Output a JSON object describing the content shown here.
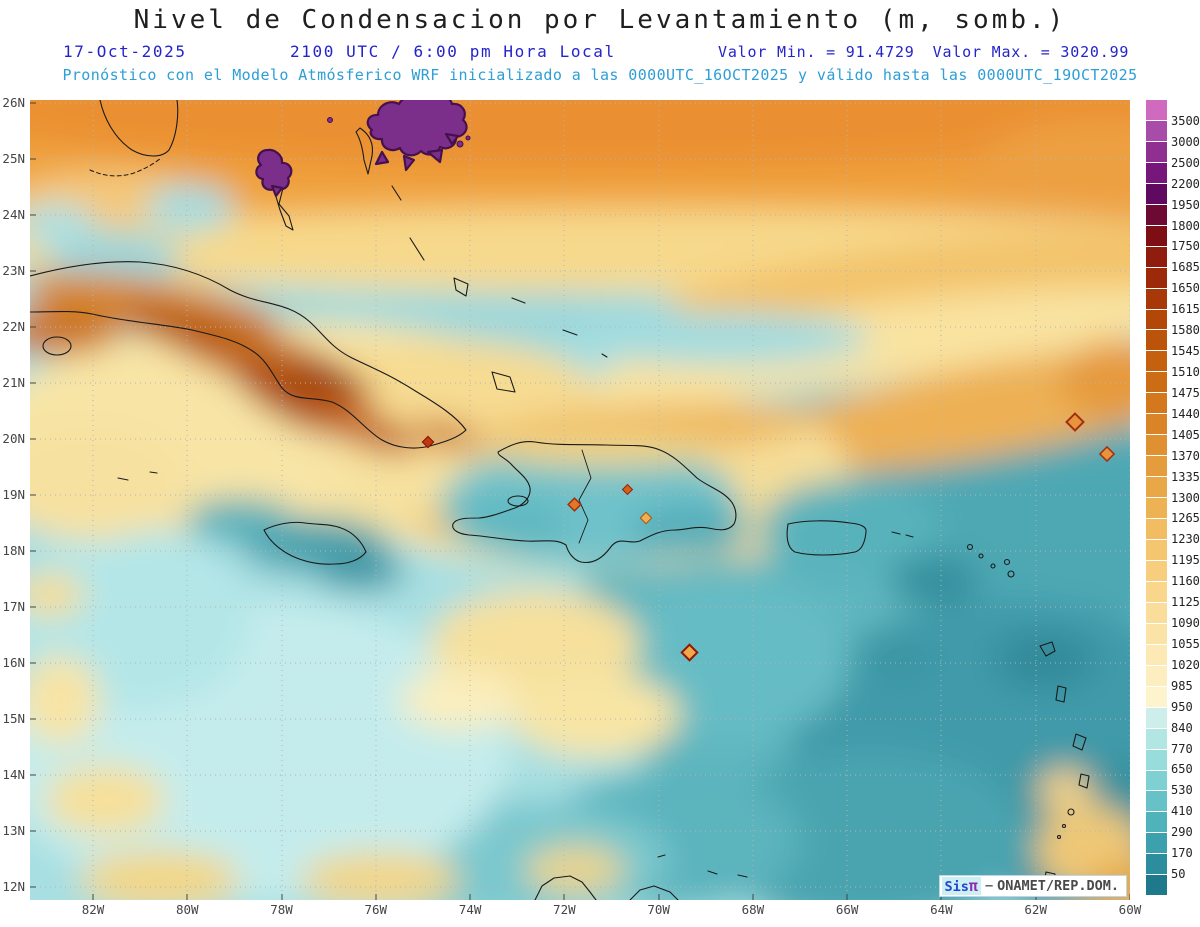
{
  "title": "Nivel de Condensacion por Levantamiento (m, somb.)",
  "header": {
    "date": "17-Oct-2025",
    "valid_time": "2100 UTC / 6:00 pm Hora Local",
    "min_value": "Valor Min. = 91.4729",
    "max_value": "Valor Max. = 3020.99",
    "model_info": "Pronóstico con el Modelo Atmósferico WRF inicializado a las 0000UTC_16OCT2025 y válido hasta las  0000UTC_19OCT2025"
  },
  "map": {
    "lat_labels": [
      "26N",
      "25N",
      "24N",
      "23N",
      "22N",
      "21N",
      "20N",
      "19N",
      "18N",
      "17N",
      "16N",
      "15N",
      "14N",
      "13N",
      "12N"
    ],
    "lon_labels": [
      "82W",
      "80W",
      "78W",
      "76W",
      "74W",
      "72W",
      "70W",
      "68W",
      "66W",
      "64W",
      "62W",
      "60W"
    ],
    "watermark": {
      "brand_prefix": "Sis",
      "brand_pi": "π",
      "separator": "−",
      "org": "ONAMET/REP.DOM."
    }
  },
  "colorbar": {
    "tick_labels": [
      "3500",
      "3000",
      "2500",
      "2200",
      "1950",
      "1800",
      "1750",
      "1685",
      "1650",
      "1615",
      "1580",
      "1545",
      "1510",
      "1475",
      "1440",
      "1405",
      "1370",
      "1335",
      "1300",
      "1265",
      "1230",
      "1195",
      "1160",
      "1125",
      "1090",
      "1055",
      "1020",
      "985",
      "950",
      "840",
      "770",
      "650",
      "530",
      "410",
      "290",
      "170",
      "50"
    ],
    "segment_colors": [
      "#cf6abf",
      "#a94ba9",
      "#8f2f92",
      "#77177c",
      "#5f0a60",
      "#6d0a33",
      "#7d0f14",
      "#8f1c0c",
      "#9c2a0a",
      "#a83808",
      "#b24708",
      "#bb540a",
      "#c4600e",
      "#cc6c14",
      "#d3781c",
      "#d98426",
      "#df9030",
      "#e49c3c",
      "#e9a848",
      "#edb254",
      "#f1bc62",
      "#f4c670",
      "#f6ce7e",
      "#f8d68c",
      "#fadd9a",
      "#fbe3a8",
      "#fce9b4",
      "#fdeec0",
      "#fdf3cc",
      "#cdeeea",
      "#b2e6e3",
      "#98dcdb",
      "#7ed0d2",
      "#66c2c7",
      "#50b2bb",
      "#3da0ad",
      "#2c8d9d",
      "#1e798b"
    ]
  },
  "chart_data": {
    "type": "heatmap",
    "title": "Nivel de Condensacion por Levantamiento (m, somb.)",
    "units": "m",
    "value_min": 91.4729,
    "value_max": 3020.99,
    "lat_range": [
      "12N",
      "26N"
    ],
    "lon_range": [
      "82W",
      "60W"
    ],
    "colorbar_levels": [
      50,
      170,
      290,
      410,
      530,
      650,
      770,
      840,
      950,
      985,
      1020,
      1055,
      1090,
      1125,
      1160,
      1195,
      1230,
      1265,
      1300,
      1335,
      1370,
      1405,
      1440,
      1475,
      1510,
      1545,
      1580,
      1615,
      1650,
      1685,
      1750,
      1800,
      1950,
      2200,
      2500,
      3000,
      3500
    ]
  }
}
